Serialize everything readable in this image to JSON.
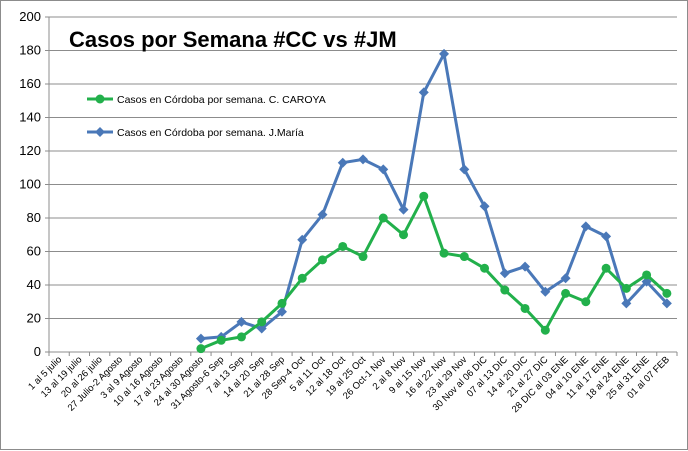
{
  "chart_data": {
    "type": "line",
    "title": "Casos por Semana #CC vs #JM",
    "xlabel": "",
    "ylabel": "",
    "ylim": [
      0,
      200
    ],
    "yticks": [
      0,
      20,
      40,
      60,
      80,
      100,
      120,
      140,
      160,
      180,
      200
    ],
    "grid": true,
    "legend_position": "top-left",
    "categories": [
      "1 al 5 julio",
      "13 al 19 julio",
      "20 al 26 julio",
      "27 Julio-2 Agosto",
      "3 al 9 Agosto",
      "10 al 16 Agosto",
      "17 al 23 Agosto",
      "24 al 30 Agosto",
      "31 Agosto-6 Sep",
      "7 al 13 Sep",
      "14 al 20 Sep",
      "21 al 28 Sep",
      "28 Sep-4 Oct",
      "5 al 11 Oct",
      "12 al 18 Oct",
      "19 al 25 Oct",
      "26 Oct-1 Nov",
      "2 al 8 Nov",
      "9 al 15 Nov",
      "16 al 22 Nov",
      "23 al 29 Nov",
      "30 Nov al 06 DIC",
      "07 al 13 DIC",
      "14 al 20 DIC",
      "21 al 27 DIC",
      "28 DIC al 03 ENE",
      "04 al 10 ENE",
      "11 al 17 ENE",
      "18 al 24 ENE",
      "25 al 31 ENE",
      "01 al 07 FEB"
    ],
    "series": [
      {
        "name": "Casos en Córdoba por semana. C. CAROYA",
        "color": "#22b04b",
        "marker": "circle",
        "values": [
          null,
          null,
          null,
          null,
          null,
          null,
          null,
          2,
          7,
          9,
          18,
          29,
          44,
          55,
          63,
          57,
          80,
          70,
          93,
          59,
          57,
          50,
          37,
          26,
          13,
          35,
          30,
          50,
          38,
          46,
          35
        ]
      },
      {
        "name": "Casos en Córdoba por semana. J.María",
        "color": "#4a78b8",
        "marker": "diamond",
        "values": [
          null,
          null,
          null,
          null,
          null,
          null,
          null,
          8,
          9,
          18,
          14,
          24,
          67,
          82,
          113,
          115,
          109,
          85,
          155,
          178,
          109,
          87,
          47,
          51,
          36,
          44,
          75,
          69,
          29,
          42,
          29
        ]
      }
    ]
  }
}
